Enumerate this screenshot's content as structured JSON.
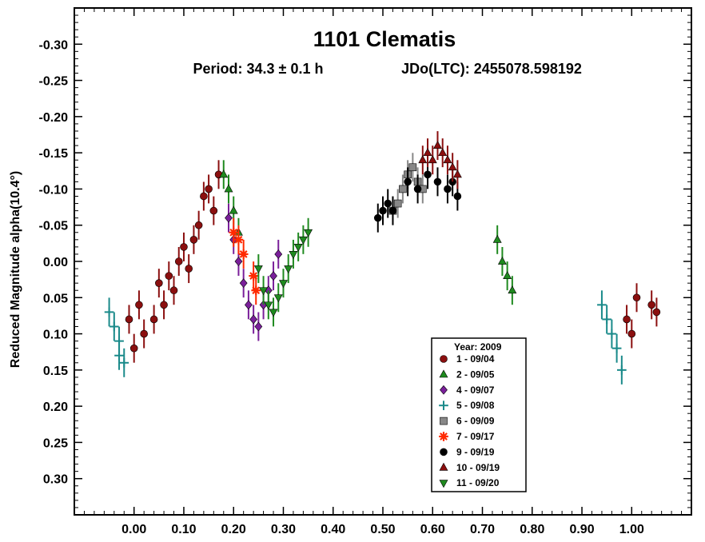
{
  "chart_data": {
    "type": "scatter",
    "title": "1101 Clematis",
    "subtitle_period": "Period: 34.3 ± 0.1 h",
    "subtitle_epoch": "JDo(LTC): 2455078.598192",
    "xlabel": "",
    "ylabel": "Reduced Magnitude alpha(10.4°)",
    "xlim": [
      -0.12,
      1.12
    ],
    "ylim": [
      0.35,
      -0.35
    ],
    "y_inverted": true,
    "x_ticks": [
      "0.00",
      "0.10",
      "0.20",
      "0.30",
      "0.40",
      "0.50",
      "0.60",
      "0.70",
      "0.80",
      "0.90",
      "1.00"
    ],
    "y_ticks": [
      "-0.30",
      "-0.25",
      "-0.20",
      "-0.15",
      "-0.10",
      "-0.05",
      "0.00",
      "0.05",
      "0.10",
      "0.15",
      "0.20",
      "0.25",
      "0.30"
    ],
    "legend_title": "Year: 2009",
    "legend_position": "bottom-center",
    "series": [
      {
        "name": "1 - 09/04",
        "color": "#8b0f0f",
        "marker": "circle",
        "x": [
          -0.01,
          0.0,
          0.01,
          0.02,
          0.04,
          0.05,
          0.06,
          0.07,
          0.08,
          0.09,
          0.1,
          0.11,
          0.12,
          0.13,
          0.14,
          0.15,
          0.16,
          0.17,
          0.99,
          1.0,
          1.01,
          1.04,
          1.05
        ],
        "y": [
          0.08,
          0.12,
          0.06,
          0.1,
          0.08,
          0.03,
          0.06,
          0.02,
          0.04,
          0.0,
          -0.02,
          0.01,
          -0.03,
          -0.05,
          -0.09,
          -0.1,
          -0.07,
          -0.12,
          0.08,
          0.1,
          0.05,
          0.06,
          0.07
        ]
      },
      {
        "name": "2 - 09/05",
        "color": "#1f8a1f",
        "marker": "triangle-up",
        "x": [
          0.18,
          0.19,
          0.2,
          0.21,
          0.73,
          0.74,
          0.75,
          0.76
        ],
        "y": [
          -0.12,
          -0.1,
          -0.07,
          -0.04,
          -0.03,
          0.0,
          0.02,
          0.04
        ]
      },
      {
        "name": "4 - 09/07",
        "color": "#7a1f9a",
        "marker": "diamond",
        "x": [
          0.19,
          0.2,
          0.21,
          0.22,
          0.23,
          0.24,
          0.25,
          0.26,
          0.27,
          0.28,
          0.29
        ],
        "y": [
          -0.06,
          -0.03,
          0.0,
          0.03,
          0.06,
          0.08,
          0.09,
          0.06,
          0.04,
          0.02,
          -0.01
        ]
      },
      {
        "name": "5 - 09/08",
        "color": "#1a8a8a",
        "marker": "plus",
        "x": [
          -0.05,
          -0.04,
          -0.03,
          -0.03,
          -0.02,
          0.94,
          0.95,
          0.96,
          0.97,
          0.98
        ],
        "y": [
          0.07,
          0.09,
          0.11,
          0.13,
          0.14,
          0.06,
          0.08,
          0.1,
          0.12,
          0.15
        ]
      },
      {
        "name": "6 - 09/09",
        "color": "#888888",
        "marker": "square",
        "x": [
          0.52,
          0.53,
          0.54,
          0.55,
          0.56,
          0.57,
          0.58
        ],
        "y": [
          -0.07,
          -0.08,
          -0.1,
          -0.12,
          -0.13,
          -0.11,
          -0.1
        ]
      },
      {
        "name": "7 - 09/17",
        "color": "#ff2a00",
        "marker": "asterisk",
        "x": [
          0.2,
          0.21,
          0.22,
          0.24,
          0.245
        ],
        "y": [
          -0.04,
          -0.03,
          -0.01,
          0.02,
          0.04
        ]
      },
      {
        "name": "9 - 09/19",
        "color": "#000000",
        "marker": "circle",
        "x": [
          0.49,
          0.5,
          0.51,
          0.52,
          0.55,
          0.57,
          0.59,
          0.61,
          0.63,
          0.64,
          0.65
        ],
        "y": [
          -0.06,
          -0.07,
          -0.08,
          -0.07,
          -0.11,
          -0.1,
          -0.12,
          -0.11,
          -0.1,
          -0.11,
          -0.09
        ]
      },
      {
        "name": "10 - 09/19",
        "color": "#8b0f0f",
        "marker": "triangle-up",
        "x": [
          0.58,
          0.59,
          0.6,
          0.61,
          0.62,
          0.63,
          0.64,
          0.65
        ],
        "y": [
          -0.14,
          -0.15,
          -0.14,
          -0.16,
          -0.15,
          -0.14,
          -0.13,
          -0.12
        ]
      },
      {
        "name": "11 - 09/20",
        "color": "#1f8a1f",
        "marker": "triangle-down",
        "x": [
          0.25,
          0.26,
          0.27,
          0.28,
          0.29,
          0.3,
          0.31,
          0.32,
          0.33,
          0.34,
          0.35
        ],
        "y": [
          0.01,
          0.04,
          0.06,
          0.07,
          0.05,
          0.03,
          0.01,
          -0.01,
          -0.02,
          -0.03,
          -0.04
        ]
      }
    ]
  }
}
